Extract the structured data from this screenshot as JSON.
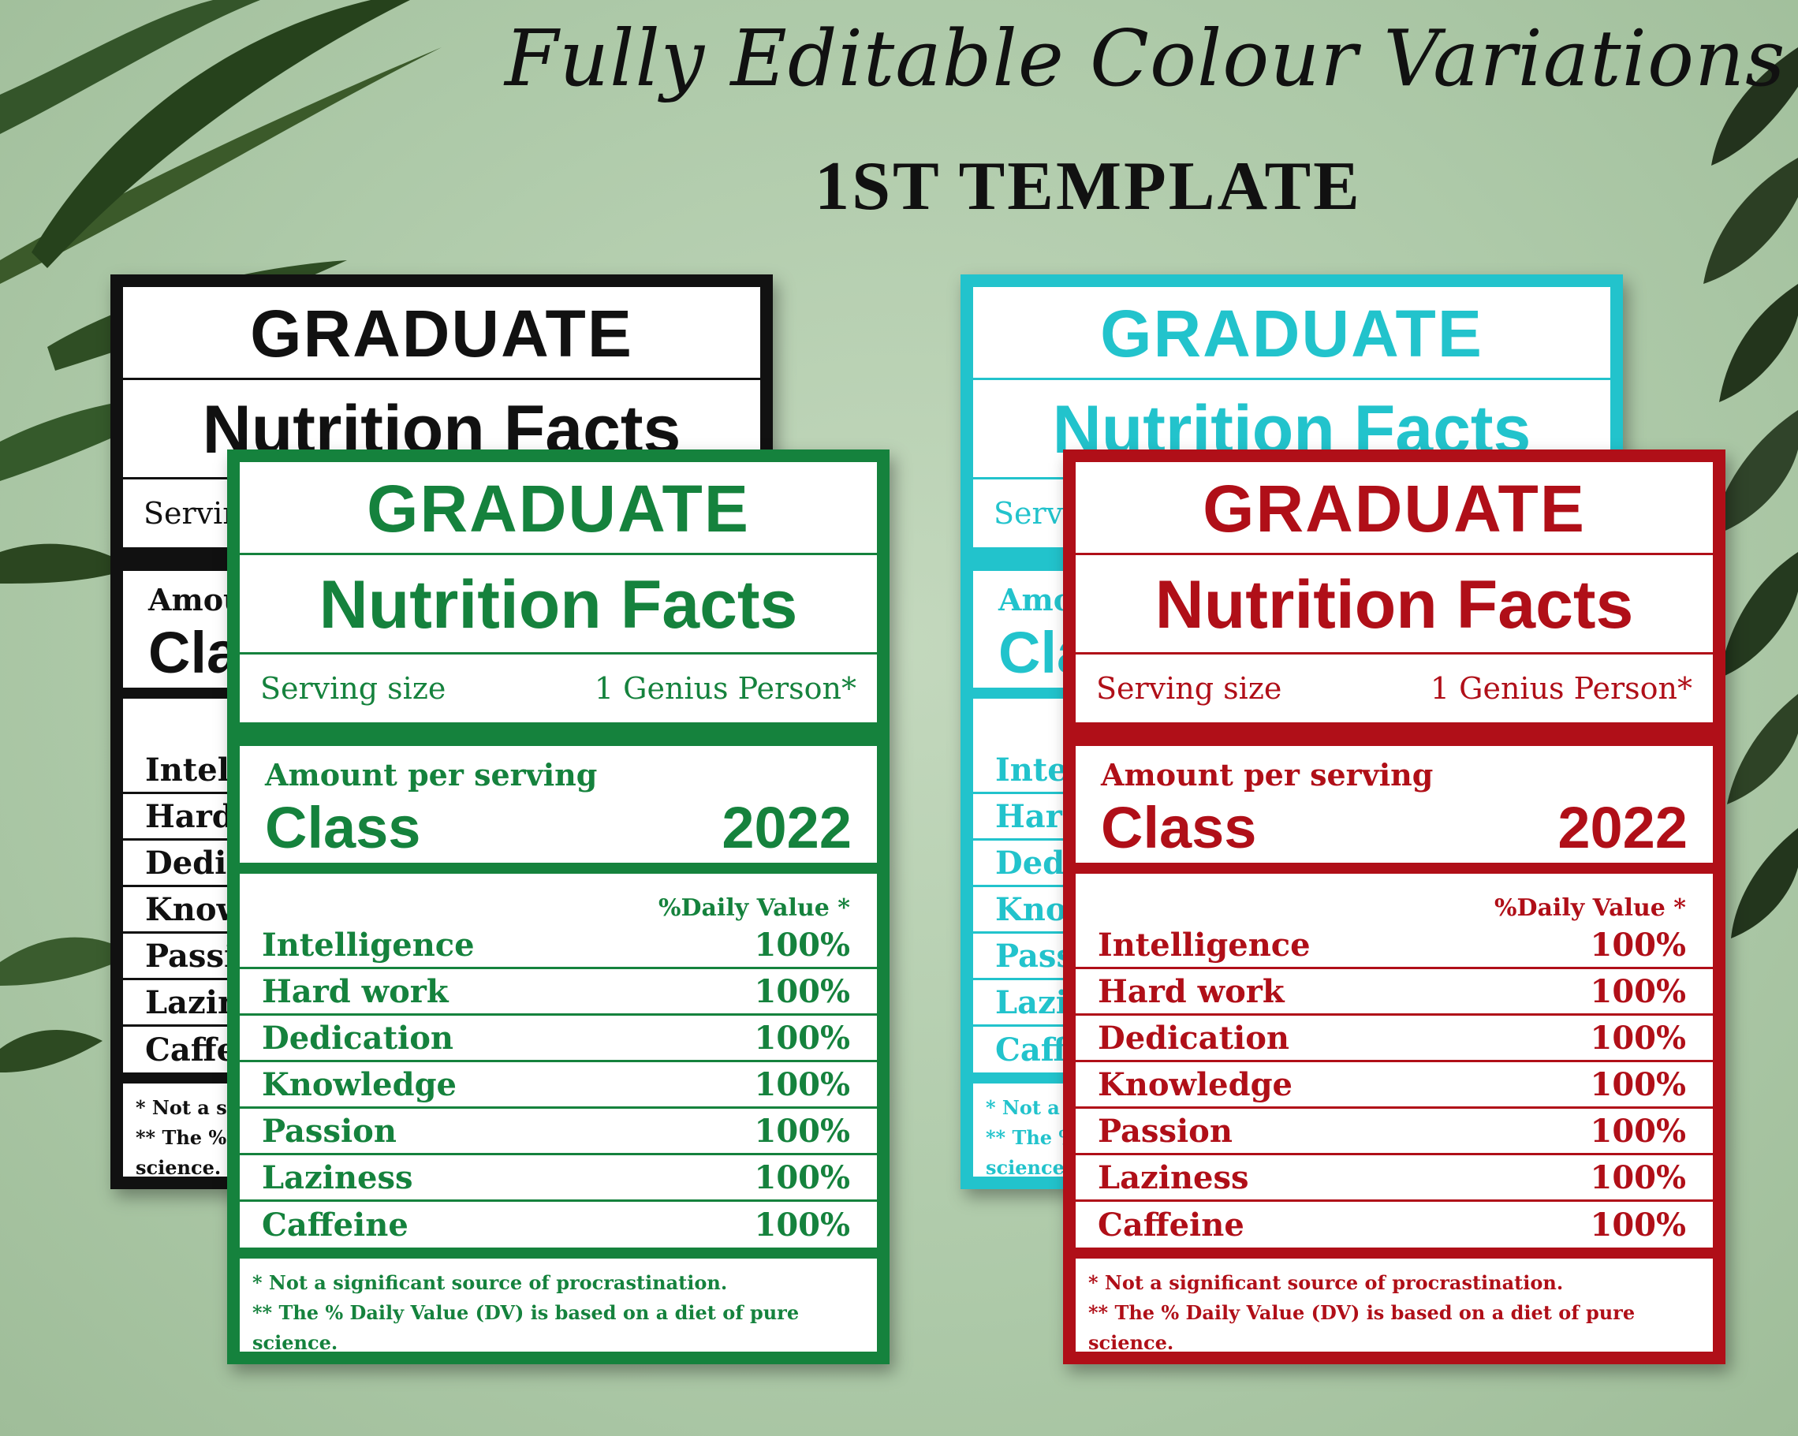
{
  "header": {
    "title": "Fully Editable Colour Variations",
    "subtitle": "1ST TEMPLATE"
  },
  "label": {
    "heading": "GRADUATE",
    "facts_title": "Nutrition Facts",
    "serving_label": "Serving size",
    "serving_value": "1 Genius Person*",
    "amount_label": "Amount per serving",
    "class_label": "Class",
    "class_year": "2022",
    "daily_value_header": "%Daily Value *",
    "rows": [
      {
        "name": "Intelligence",
        "value": "100%"
      },
      {
        "name": "Hard work",
        "value": "100%"
      },
      {
        "name": "Dedication",
        "value": "100%"
      },
      {
        "name": "Knowledge",
        "value": "100%"
      },
      {
        "name": "Passion",
        "value": "100%"
      },
      {
        "name": "Laziness",
        "value": "100%"
      },
      {
        "name": "Caffeine",
        "value": "100%"
      }
    ],
    "footnote_1": "* Not a significant source of procrastination.",
    "footnote_2": "** The % Daily Value (DV) is based on a diet of pure science."
  },
  "colors": {
    "black": "#111111",
    "teal": "#22c3cc",
    "green": "#15823d",
    "red": "#b00f18",
    "background": "#b8d2b2"
  }
}
